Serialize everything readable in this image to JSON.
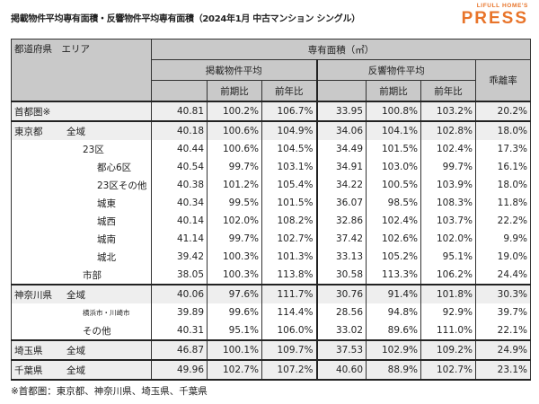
{
  "title": "掲載物件平均専有面積・反響物件平均専有面積（2024年1月 中古マンション シングル）",
  "logo": {
    "small": "LIFULL HOME'S",
    "big": "PRESS",
    "color": "#e8742a"
  },
  "header": {
    "area": "都道府県　エリア",
    "group": "専有面積（㎡）",
    "listed": "掲載物件平均",
    "response": "反響物件平均",
    "prev_period": "前期比",
    "prev_year": "前年比",
    "gap": "乖離率"
  },
  "rows": [
    {
      "pref": "首都圏※",
      "area": "",
      "indent": 0,
      "values": [
        "40.81",
        "100.2%",
        "106.7%",
        "33.95",
        "100.8%",
        "103.2%",
        "20.2%"
      ],
      "shaded": true
    },
    {
      "pref": "東京都",
      "area": "全域",
      "indent": 0,
      "values": [
        "40.18",
        "100.6%",
        "104.9%",
        "34.06",
        "104.1%",
        "102.8%",
        "18.0%"
      ],
      "shaded": true
    },
    {
      "pref": "",
      "area": "23区",
      "indent": 1,
      "values": [
        "40.44",
        "100.6%",
        "104.5%",
        "34.49",
        "101.5%",
        "102.4%",
        "17.3%"
      ]
    },
    {
      "pref": "",
      "area": "都心6区",
      "indent": 2,
      "values": [
        "40.54",
        "99.7%",
        "103.1%",
        "34.91",
        "103.0%",
        "99.7%",
        "16.1%"
      ]
    },
    {
      "pref": "",
      "area": "23区その他",
      "indent": 2,
      "values": [
        "40.38",
        "101.2%",
        "105.4%",
        "34.22",
        "100.5%",
        "103.9%",
        "18.0%"
      ]
    },
    {
      "pref": "",
      "area": "城東",
      "indent": 2,
      "values": [
        "40.34",
        "99.5%",
        "101.5%",
        "36.07",
        "98.5%",
        "108.3%",
        "11.8%"
      ]
    },
    {
      "pref": "",
      "area": "城西",
      "indent": 2,
      "values": [
        "40.14",
        "102.0%",
        "108.2%",
        "32.86",
        "102.4%",
        "103.7%",
        "22.2%"
      ]
    },
    {
      "pref": "",
      "area": "城南",
      "indent": 2,
      "values": [
        "41.14",
        "99.7%",
        "102.7%",
        "37.42",
        "102.6%",
        "102.0%",
        "9.9%"
      ]
    },
    {
      "pref": "",
      "area": "城北",
      "indent": 2,
      "values": [
        "39.42",
        "100.3%",
        "101.3%",
        "33.13",
        "105.2%",
        "95.1%",
        "19.0%"
      ]
    },
    {
      "pref": "",
      "area": "市部",
      "indent": 1,
      "values": [
        "38.05",
        "100.3%",
        "113.8%",
        "30.58",
        "113.3%",
        "106.2%",
        "24.4%"
      ]
    },
    {
      "pref": "神奈川県",
      "area": "全域",
      "indent": 0,
      "values": [
        "40.06",
        "97.6%",
        "111.7%",
        "30.76",
        "91.4%",
        "101.8%",
        "30.3%"
      ],
      "shaded": true
    },
    {
      "pref": "",
      "area": "横浜市・川崎市",
      "indent": 1,
      "small": true,
      "values": [
        "39.89",
        "99.6%",
        "114.4%",
        "28.56",
        "94.8%",
        "92.9%",
        "39.7%"
      ]
    },
    {
      "pref": "",
      "area": "その他",
      "indent": 1,
      "values": [
        "40.31",
        "95.1%",
        "106.0%",
        "33.02",
        "89.6%",
        "111.0%",
        "22.1%"
      ]
    },
    {
      "pref": "埼玉県",
      "area": "全域",
      "indent": 0,
      "values": [
        "46.87",
        "100.1%",
        "109.7%",
        "37.53",
        "102.9%",
        "109.2%",
        "24.9%"
      ],
      "shaded": true
    },
    {
      "pref": "千葉県",
      "area": "全域",
      "indent": 0,
      "values": [
        "49.96",
        "102.7%",
        "107.2%",
        "40.60",
        "88.9%",
        "102.7%",
        "23.1%"
      ],
      "shaded": true
    }
  ],
  "footnote": "※首都圏：東京都、神奈川県、埼玉県、千葉県"
}
